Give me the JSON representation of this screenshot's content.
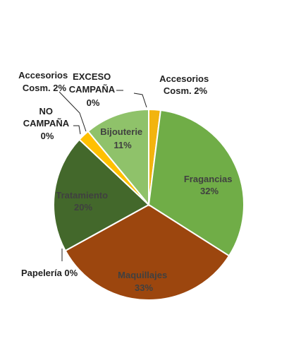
{
  "chart_data": {
    "type": "pie",
    "title": "",
    "slices": [
      {
        "name": "Accesorios Cosm.",
        "value": 2,
        "pct_label": "2%",
        "color": "#F2B40F"
      },
      {
        "name": "Fragancias",
        "value": 32,
        "pct_label": "32%",
        "color": "#70AD47"
      },
      {
        "name": "Maquillajes",
        "value": 33,
        "pct_label": "33%",
        "color": "#9C460E"
      },
      {
        "name": "Papelería",
        "value": 0,
        "pct_label": "0%",
        "color": "#7F7F7F"
      },
      {
        "name": "Tratamiento",
        "value": 20,
        "pct_label": "20%",
        "color": "#43682B"
      },
      {
        "name": "NO CAMPAÑA",
        "value": 0,
        "pct_label": "0%",
        "color": "#A5A5A5"
      },
      {
        "name": "Accesorios Cosm.",
        "value": 2,
        "pct_label": "2%",
        "color": "#FFC000"
      },
      {
        "name": "Bijouterie",
        "value": 11,
        "pct_label": "11%",
        "color": "#8FC26A"
      },
      {
        "name": "EXCESO CAMPAÑA",
        "value": 0,
        "pct_label": "0%",
        "color": "#5B9BD5"
      }
    ]
  },
  "labels": {
    "acc_right_1": "Accesorios",
    "acc_right_2": "Cosm. 2%",
    "fragancias_1": "Fragancias",
    "fragancias_2": "32%",
    "maquillajes_1": "Maquillajes",
    "maquillajes_2": "33%",
    "papeleria": "Papelería 0%",
    "tratamiento_1": "Tratamiento",
    "tratamiento_2": "20%",
    "no_campana_1": "NO",
    "no_campana_2": "CAMPAÑA",
    "no_campana_3": "0%",
    "acc_left_1": "Accesorios",
    "acc_left_2": "Cosm. 2%",
    "bijouterie_1": "Bijouterie",
    "bijouterie_2": "11%",
    "exceso_1": "EXCESO",
    "exceso_2": "CAMPAÑA",
    "exceso_3": "0%"
  }
}
